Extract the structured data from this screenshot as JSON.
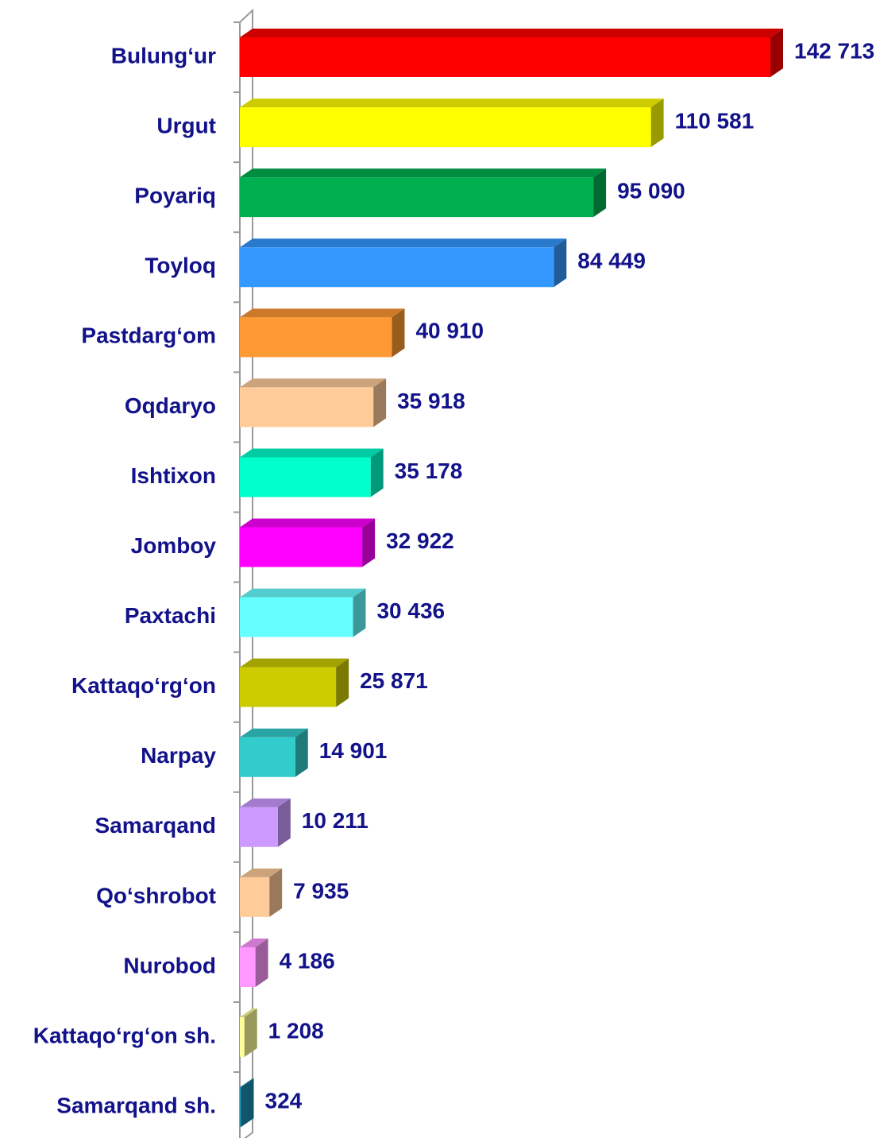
{
  "chart_data": {
    "type": "bar",
    "orientation": "horizontal",
    "three_d": true,
    "categories": [
      "Bulung‘ur",
      "Urgut",
      "Poyariq",
      "Toyloq",
      "Pastdarg‘om",
      "Oqdaryo",
      "Ishtixon",
      "Jomboy",
      "Paxtachi",
      "Kattaqo‘rg‘on",
      "Narpay",
      "Samarqand",
      "Qo‘shrobot",
      "Nurobod",
      "Kattaqo‘rg‘on sh.",
      "Samarqand sh."
    ],
    "values": [
      142713,
      110581,
      95090,
      84449,
      40910,
      35918,
      35178,
      32922,
      30436,
      25871,
      14901,
      10211,
      7935,
      4186,
      1208,
      324
    ],
    "value_labels": [
      "142 713",
      "110 581",
      "95 090",
      "84 449",
      "40 910",
      "35 918",
      "35 178",
      "32 922",
      "30 436",
      "25 871",
      "14 901",
      "10 211",
      "7 935",
      "4 186",
      "1 208",
      "324"
    ],
    "colors": [
      "#ff0000",
      "#ffff00",
      "#00b050",
      "#3399ff",
      "#ff9933",
      "#ffcc99",
      "#00ffcc",
      "#ff00ff",
      "#66ffff",
      "#cccc00",
      "#33cccc",
      "#cc99ff",
      "#ffcc99",
      "#ff99ff",
      "#ffff99",
      "#1a8fb0"
    ]
  }
}
